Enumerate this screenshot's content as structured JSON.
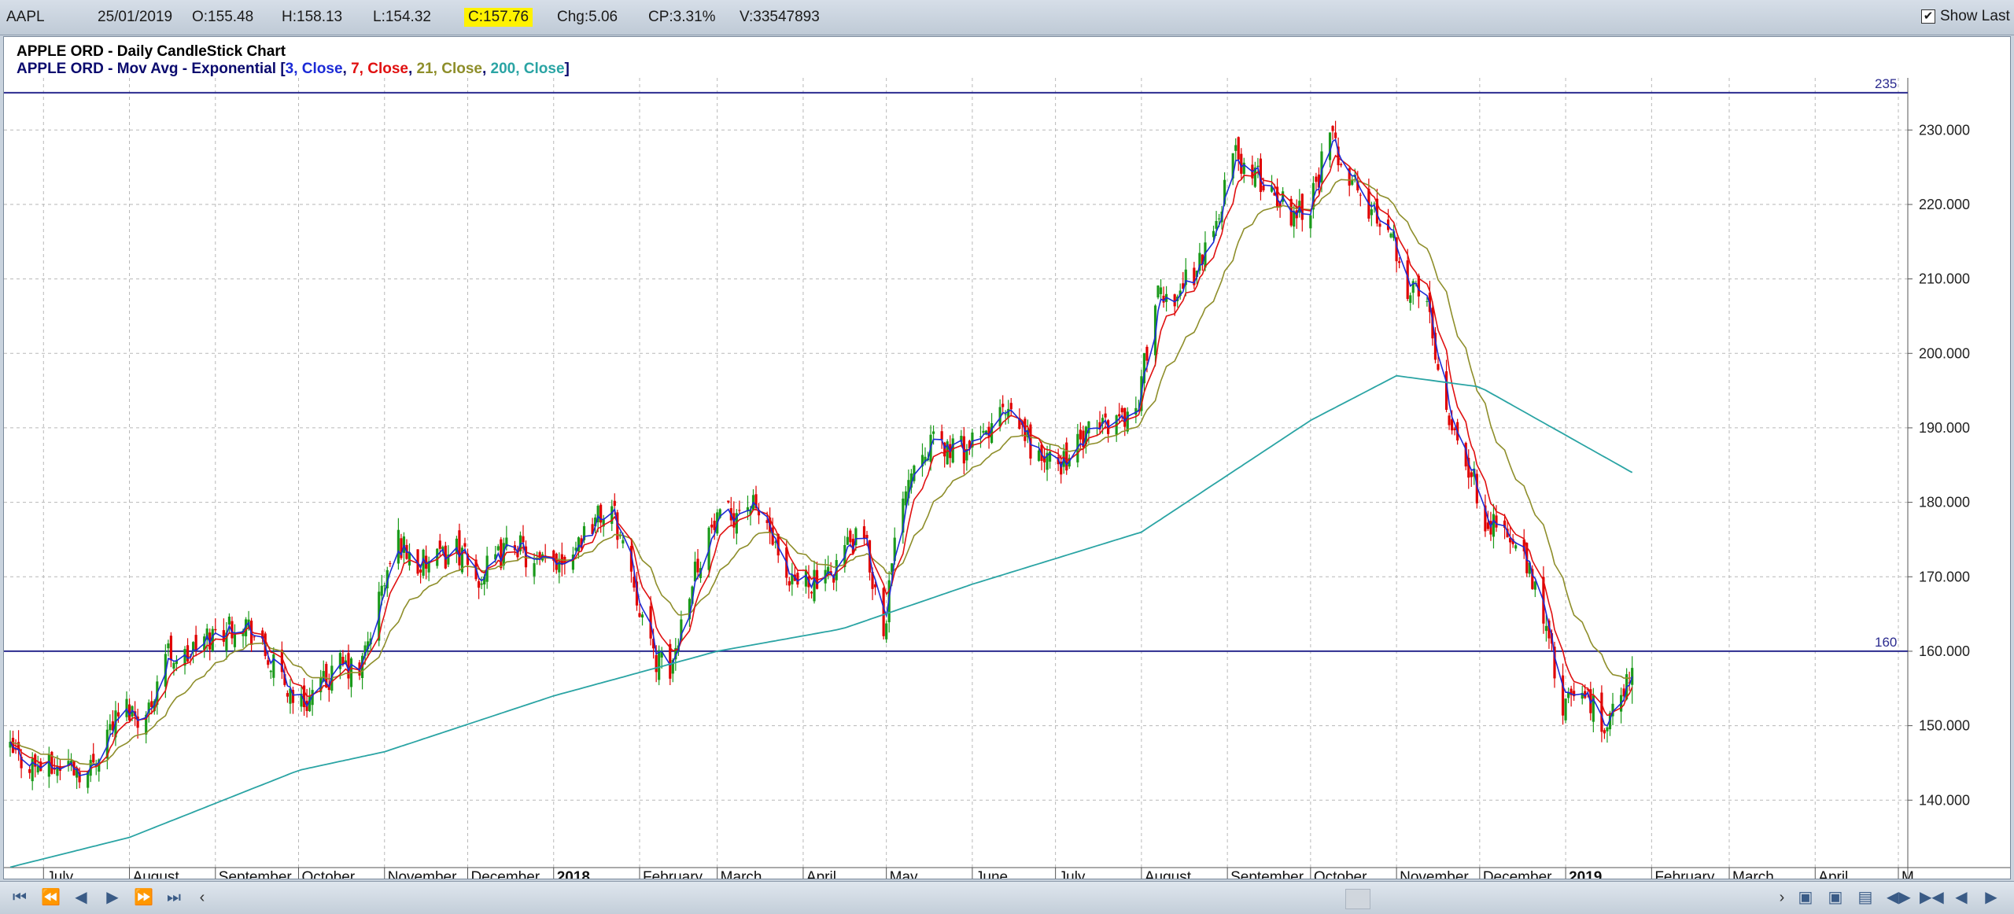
{
  "info": {
    "symbol": "AAPL",
    "date": "25/01/2019",
    "open": "O:155.48",
    "high": "H:158.13",
    "low": "L:154.32",
    "close": "C:157.76",
    "change": "Chg:5.06",
    "change_pct": "CP:3.31%",
    "volume": "V:33547893",
    "show_last_label": "Show Last",
    "show_last_checked": "✔"
  },
  "chart_titles": {
    "line1": "APPLE ORD - Daily CandleStick Chart",
    "line2_prefix": "APPLE ORD - Mov Avg - Exponential [",
    "p3": "3, Close",
    "p7": "7, Close",
    "p21": "21, Close",
    "p200": "200, Close",
    "sep": ", ",
    "suffix": "]"
  },
  "colors": {
    "up": "#1a9a1a",
    "down": "#e00000",
    "ema3": "#1c2bd6",
    "ema7": "#e01010",
    "ema21": "#8e8e2a",
    "ema200": "#2aa4a4",
    "hline": "#2b2b8f",
    "title_dark": "#0a0a6e"
  },
  "nav_icons": [
    "first-icon",
    "rewind-icon",
    "prev-icon",
    "next-icon",
    "fast-forward-icon",
    "last-icon"
  ],
  "chart_data": {
    "type": "candlestick",
    "title": "APPLE ORD - Daily CandleStick Chart",
    "date_range": [
      "2017-06-19",
      "2019-01-25"
    ],
    "ylim": [
      132,
      237
    ],
    "yticks": [
      140,
      150,
      160,
      170,
      180,
      190,
      200,
      210,
      220,
      230
    ],
    "ytick_labels": [
      "140.000",
      "150.000",
      "160.000",
      "170.000",
      "180.000",
      "190.000",
      "200.000",
      "210.000",
      "220.000",
      "230.000"
    ],
    "x_tick_labels": [
      {
        "date": "2017-07-01",
        "label": "July",
        "bold": false
      },
      {
        "date": "2017-08-01",
        "label": "August",
        "bold": false
      },
      {
        "date": "2017-09-01",
        "label": "September",
        "bold": false
      },
      {
        "date": "2017-10-01",
        "label": "October",
        "bold": false
      },
      {
        "date": "2017-11-01",
        "label": "November",
        "bold": false
      },
      {
        "date": "2017-12-01",
        "label": "December",
        "bold": false
      },
      {
        "date": "2018-01-01",
        "label": "2018",
        "bold": true
      },
      {
        "date": "2018-02-01",
        "label": "February",
        "bold": false
      },
      {
        "date": "2018-03-01",
        "label": "March",
        "bold": false
      },
      {
        "date": "2018-04-01",
        "label": "April",
        "bold": false
      },
      {
        "date": "2018-05-01",
        "label": "May",
        "bold": false
      },
      {
        "date": "2018-06-01",
        "label": "June",
        "bold": false
      },
      {
        "date": "2018-07-01",
        "label": "July",
        "bold": false
      },
      {
        "date": "2018-08-01",
        "label": "August",
        "bold": false
      },
      {
        "date": "2018-09-01",
        "label": "September",
        "bold": false
      },
      {
        "date": "2018-10-01",
        "label": "October",
        "bold": false
      },
      {
        "date": "2018-11-01",
        "label": "November",
        "bold": false
      },
      {
        "date": "2018-12-01",
        "label": "December",
        "bold": false
      },
      {
        "date": "2019-01-01",
        "label": "2019",
        "bold": true
      },
      {
        "date": "2019-02-01",
        "label": "February",
        "bold": false
      },
      {
        "date": "2019-03-01",
        "label": "March",
        "bold": false
      },
      {
        "date": "2019-04-01",
        "label": "April",
        "bold": false
      },
      {
        "date": "2019-05-01",
        "label": "M",
        "bold": false
      }
    ],
    "horizontal_lines": [
      {
        "value": 235,
        "label": "235"
      },
      {
        "value": 160,
        "label": "160"
      }
    ],
    "ema_periods": [
      3,
      7,
      21,
      200
    ],
    "close_series": [
      {
        "date": "2017-06-19",
        "value": 146.3
      },
      {
        "date": "2017-06-26",
        "value": 145.0
      },
      {
        "date": "2017-07-03",
        "value": 144.2
      },
      {
        "date": "2017-07-10",
        "value": 145.0
      },
      {
        "date": "2017-07-17",
        "value": 143.5
      },
      {
        "date": "2017-07-24",
        "value": 149.5
      },
      {
        "date": "2017-07-31",
        "value": 152.5
      },
      {
        "date": "2017-08-07",
        "value": 151.0
      },
      {
        "date": "2017-08-14",
        "value": 160.0
      },
      {
        "date": "2017-08-21",
        "value": 159.0
      },
      {
        "date": "2017-08-28",
        "value": 161.5
      },
      {
        "date": "2017-09-04",
        "value": 163.0
      },
      {
        "date": "2017-09-11",
        "value": 164.5
      },
      {
        "date": "2017-09-18",
        "value": 160.0
      },
      {
        "date": "2017-09-25",
        "value": 156.0
      },
      {
        "date": "2017-10-02",
        "value": 153.0
      },
      {
        "date": "2017-10-09",
        "value": 155.0
      },
      {
        "date": "2017-10-16",
        "value": 158.0
      },
      {
        "date": "2017-10-23",
        "value": 157.0
      },
      {
        "date": "2017-10-30",
        "value": 167.0
      },
      {
        "date": "2017-11-06",
        "value": 175.0
      },
      {
        "date": "2017-11-13",
        "value": 171.5
      },
      {
        "date": "2017-11-20",
        "value": 172.0
      },
      {
        "date": "2017-11-27",
        "value": 174.0
      },
      {
        "date": "2017-12-04",
        "value": 169.5
      },
      {
        "date": "2017-12-11",
        "value": 172.0
      },
      {
        "date": "2017-12-18",
        "value": 175.0
      },
      {
        "date": "2017-12-25",
        "value": 171.0
      },
      {
        "date": "2018-01-01",
        "value": 172.0
      },
      {
        "date": "2018-01-08",
        "value": 174.0
      },
      {
        "date": "2018-01-15",
        "value": 177.5
      },
      {
        "date": "2018-01-22",
        "value": 179.0
      },
      {
        "date": "2018-01-29",
        "value": 171.0
      },
      {
        "date": "2018-02-05",
        "value": 160.0
      },
      {
        "date": "2018-02-12",
        "value": 157.0
      },
      {
        "date": "2018-02-19",
        "value": 169.0
      },
      {
        "date": "2018-02-26",
        "value": 176.0
      },
      {
        "date": "2018-03-05",
        "value": 178.0
      },
      {
        "date": "2018-03-12",
        "value": 180.0
      },
      {
        "date": "2018-03-19",
        "value": 177.0
      },
      {
        "date": "2018-03-26",
        "value": 168.0
      },
      {
        "date": "2018-04-02",
        "value": 170.0
      },
      {
        "date": "2018-04-09",
        "value": 169.0
      },
      {
        "date": "2018-04-16",
        "value": 174.0
      },
      {
        "date": "2018-04-23",
        "value": 175.0
      },
      {
        "date": "2018-04-30",
        "value": 163.0
      },
      {
        "date": "2018-05-07",
        "value": 182.0
      },
      {
        "date": "2018-05-14",
        "value": 188.0
      },
      {
        "date": "2018-05-21",
        "value": 187.5
      },
      {
        "date": "2018-05-28",
        "value": 187.0
      },
      {
        "date": "2018-06-04",
        "value": 188.0
      },
      {
        "date": "2018-06-11",
        "value": 192.0
      },
      {
        "date": "2018-06-18",
        "value": 190.0
      },
      {
        "date": "2018-06-25",
        "value": 186.0
      },
      {
        "date": "2018-07-02",
        "value": 185.0
      },
      {
        "date": "2018-07-09",
        "value": 187.5
      },
      {
        "date": "2018-07-16",
        "value": 190.0
      },
      {
        "date": "2018-07-23",
        "value": 191.5
      },
      {
        "date": "2018-07-30",
        "value": 192.0
      },
      {
        "date": "2018-08-06",
        "value": 207.0
      },
      {
        "date": "2018-08-13",
        "value": 208.0
      },
      {
        "date": "2018-08-20",
        "value": 211.0
      },
      {
        "date": "2018-08-27",
        "value": 216.0
      },
      {
        "date": "2018-09-03",
        "value": 227.0
      },
      {
        "date": "2018-09-10",
        "value": 224.0
      },
      {
        "date": "2018-09-17",
        "value": 222.0
      },
      {
        "date": "2018-09-24",
        "value": 219.0
      },
      {
        "date": "2018-10-01",
        "value": 220.5
      },
      {
        "date": "2018-10-08",
        "value": 229.0
      },
      {
        "date": "2018-10-15",
        "value": 224.0
      },
      {
        "date": "2018-10-22",
        "value": 219.0
      },
      {
        "date": "2018-10-29",
        "value": 218.0
      },
      {
        "date": "2018-11-05",
        "value": 209.0
      },
      {
        "date": "2018-11-12",
        "value": 207.0
      },
      {
        "date": "2018-11-19",
        "value": 193.0
      },
      {
        "date": "2018-11-26",
        "value": 186.0
      },
      {
        "date": "2018-12-03",
        "value": 178.0
      },
      {
        "date": "2018-12-10",
        "value": 176.0
      },
      {
        "date": "2018-12-17",
        "value": 172.0
      },
      {
        "date": "2018-12-24",
        "value": 165.0
      },
      {
        "date": "2018-12-31",
        "value": 152.0
      },
      {
        "date": "2019-01-07",
        "value": 155.0
      },
      {
        "date": "2019-01-14",
        "value": 150.0
      },
      {
        "date": "2019-01-21",
        "value": 153.0
      },
      {
        "date": "2019-01-25",
        "value": 157.76
      }
    ],
    "ema200_series": [
      {
        "date": "2017-06-19",
        "value": 131.0
      },
      {
        "date": "2017-08-01",
        "value": 135.0
      },
      {
        "date": "2017-10-01",
        "value": 144.0
      },
      {
        "date": "2017-11-01",
        "value": 146.5
      },
      {
        "date": "2018-01-01",
        "value": 154.0
      },
      {
        "date": "2018-03-01",
        "value": 160.0
      },
      {
        "date": "2018-04-15",
        "value": 163.0
      },
      {
        "date": "2018-06-01",
        "value": 169.0
      },
      {
        "date": "2018-08-01",
        "value": 176.0
      },
      {
        "date": "2018-10-01",
        "value": 191.0
      },
      {
        "date": "2018-11-01",
        "value": 197.0
      },
      {
        "date": "2018-12-01",
        "value": 195.5
      },
      {
        "date": "2019-01-25",
        "value": 184.0
      }
    ]
  }
}
